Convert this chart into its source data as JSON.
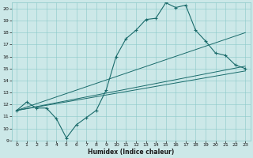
{
  "xlabel": "Humidex (Indice chaleur)",
  "ylabel": "",
  "bg_color": "#cce8e8",
  "line_color": "#1a6b6b",
  "xlim": [
    -0.5,
    23.5
  ],
  "ylim": [
    9,
    20.5
  ],
  "xticks": [
    0,
    1,
    2,
    3,
    4,
    5,
    6,
    7,
    8,
    9,
    10,
    11,
    12,
    13,
    14,
    15,
    16,
    17,
    18,
    19,
    20,
    21,
    22,
    23
  ],
  "yticks": [
    9,
    10,
    11,
    12,
    13,
    14,
    15,
    16,
    17,
    18,
    19,
    20
  ],
  "line1_x": [
    0,
    1,
    2,
    3,
    4,
    5,
    6,
    7,
    8,
    9,
    10,
    11,
    12,
    13,
    14,
    15,
    16,
    17,
    18,
    19,
    20,
    21,
    22,
    23
  ],
  "line1_y": [
    11.5,
    12.2,
    11.7,
    11.7,
    10.8,
    9.2,
    10.3,
    10.9,
    11.5,
    13.2,
    16.0,
    17.5,
    18.2,
    19.1,
    19.2,
    20.5,
    20.1,
    20.3,
    18.2,
    17.3,
    16.3,
    16.1,
    15.3,
    15.0
  ],
  "line2_x": [
    0,
    23
  ],
  "line2_y": [
    11.5,
    18.0
  ],
  "line3_x": [
    0,
    23
  ],
  "line3_y": [
    11.5,
    14.8
  ],
  "line4_x": [
    0,
    23
  ],
  "line4_y": [
    11.5,
    15.2
  ]
}
